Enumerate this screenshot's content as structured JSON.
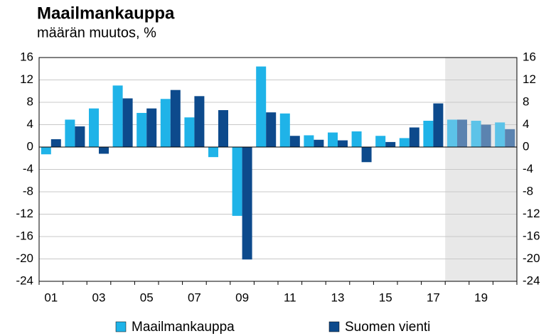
{
  "chart_data": {
    "type": "bar",
    "title": "Maailmankauppa",
    "subtitle": "määrän muutos, %",
    "categories": [
      "01",
      null,
      "03",
      null,
      "05",
      null,
      "07",
      null,
      "09",
      null,
      "11",
      null,
      "13",
      null,
      "15",
      null,
      "17",
      null,
      "19",
      null
    ],
    "series": [
      {
        "name": "Maailmankauppa",
        "color": "#1fb3e8",
        "forecast_color": "#5cc3e8",
        "values": [
          -1.3,
          4.9,
          6.9,
          11.0,
          6.1,
          8.6,
          5.3,
          -1.8,
          -12.3,
          14.4,
          6.0,
          2.1,
          2.6,
          2.8,
          2.0,
          1.6,
          4.7,
          4.9,
          4.7,
          4.4
        ]
      },
      {
        "name": "Suomen vienti",
        "color": "#0d4a8c",
        "forecast_color": "#5b83b0",
        "values": [
          1.4,
          3.7,
          -1.2,
          8.7,
          6.9,
          10.2,
          9.1,
          6.6,
          -20.1,
          6.2,
          2.0,
          1.3,
          1.2,
          -2.7,
          0.9,
          3.5,
          7.8,
          4.9,
          4.0,
          3.2
        ]
      }
    ],
    "forecast_start_index": 17,
    "ylim": [
      -24,
      16
    ],
    "yticks": [
      -24,
      -20,
      -16,
      -12,
      -8,
      -4,
      0,
      4,
      8,
      12,
      16
    ],
    "y2lim": [
      -24,
      16
    ],
    "y2ticks": [
      -24,
      -20,
      -16,
      -12,
      -8,
      -4,
      0,
      4,
      8,
      12,
      16
    ],
    "grid": true,
    "legend": "bottom"
  }
}
